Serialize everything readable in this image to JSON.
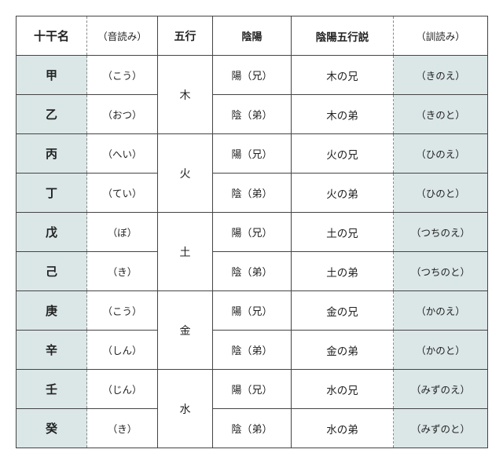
{
  "table": {
    "background_color": "#ffffff",
    "shade_color": "#dbe6e7",
    "border_color": "#444444",
    "dashed_color": "#888888",
    "headers": {
      "name": "十干名",
      "onyomi": "（音読み）",
      "gogyou": "五行",
      "inyou": "陰陽",
      "setsu": "陰陽五行説",
      "kunyomi": "（訓読み）"
    },
    "elements": [
      "木",
      "火",
      "土",
      "金",
      "水"
    ],
    "rows": [
      {
        "name": "甲",
        "onyomi": "（こう）",
        "inyou": "陽（兄）",
        "setsu": "木の兄",
        "kunyomi": "（きのえ）"
      },
      {
        "name": "乙",
        "onyomi": "（おつ）",
        "inyou": "陰（弟）",
        "setsu": "木の弟",
        "kunyomi": "（きのと）"
      },
      {
        "name": "丙",
        "onyomi": "（へい）",
        "inyou": "陽（兄）",
        "setsu": "火の兄",
        "kunyomi": "（ひのえ）"
      },
      {
        "name": "丁",
        "onyomi": "（てい）",
        "inyou": "陰（弟）",
        "setsu": "火の弟",
        "kunyomi": "（ひのと）"
      },
      {
        "name": "戊",
        "onyomi": "（ぼ）",
        "inyou": "陽（兄）",
        "setsu": "土の兄",
        "kunyomi": "（つちのえ）"
      },
      {
        "name": "己",
        "onyomi": "（き）",
        "inyou": "陰（弟）",
        "setsu": "土の弟",
        "kunyomi": "（つちのと）"
      },
      {
        "name": "庚",
        "onyomi": "（こう）",
        "inyou": "陽（兄）",
        "setsu": "金の兄",
        "kunyomi": "（かのえ）"
      },
      {
        "name": "辛",
        "onyomi": "（しん）",
        "inyou": "陰（弟）",
        "setsu": "金の弟",
        "kunyomi": "（かのと）"
      },
      {
        "name": "壬",
        "onyomi": "（じん）",
        "inyou": "陽（兄）",
        "setsu": "水の兄",
        "kunyomi": "（みずのえ）"
      },
      {
        "name": "癸",
        "onyomi": "（き）",
        "inyou": "陰（弟）",
        "setsu": "水の弟",
        "kunyomi": "（みずのと）"
      }
    ]
  }
}
